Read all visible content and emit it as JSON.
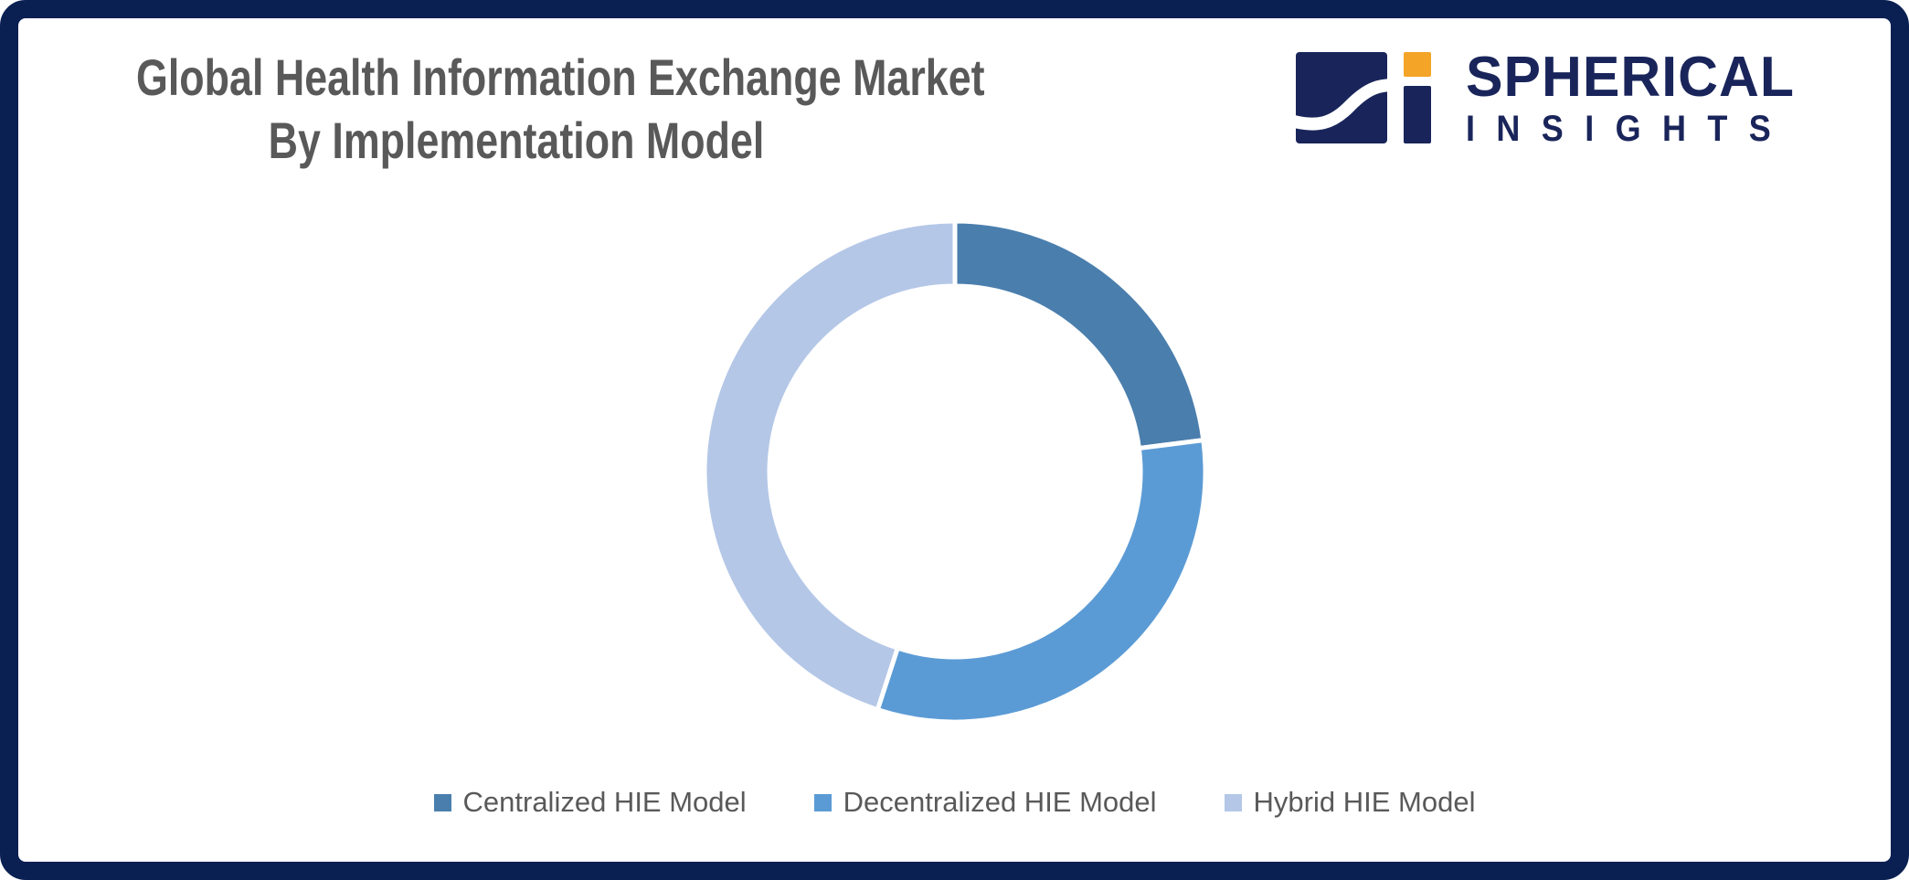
{
  "page": {
    "background_color": "#FFFFFF",
    "frame_border_color": "#0A2053"
  },
  "title": {
    "line1": "Global Health Information Exchange Market",
    "line2": "By Implementation Model",
    "text_color": "#595959"
  },
  "logo": {
    "brand_line1": "SPHERICAL",
    "brand_line2": "INSIGHTS",
    "navy_color": "#19255A",
    "orange_color": "#F4A427"
  },
  "chart_data": {
    "type": "pie",
    "subtype": "doughnut",
    "title": "Global Health Information Exchange Market By Implementation Model",
    "units": "% share (estimated from arc angles)",
    "start_angle_deg": 0,
    "direction": "clockwise",
    "inner_radius_ratio": 0.74,
    "separator_color": "#FFFFFF",
    "legend_position": "bottom",
    "segments": [
      {
        "label": "Centralized HIE Model",
        "value": 23,
        "color": "#4A7EAD"
      },
      {
        "label": "Decentralized HIE Model",
        "value": 32,
        "color": "#5B9BD5"
      },
      {
        "label": "Hybrid HIE Model",
        "value": 45,
        "color": "#B4C7E7"
      }
    ]
  },
  "legend": {
    "text_color": "#595959"
  }
}
